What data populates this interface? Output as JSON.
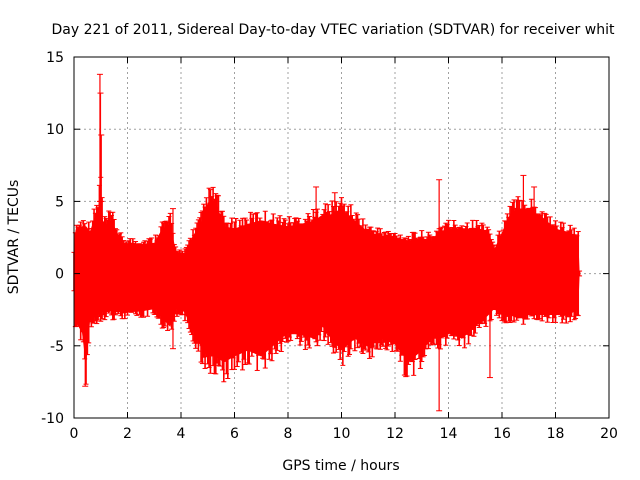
{
  "chart_data": {
    "type": "errorbar",
    "title": "Day 221 of 2011, Sidereal Day-to-day VTEC variation (SDTVAR) for receiver whit",
    "xlabel": "GPS time / hours",
    "ylabel": "SDTVAR / TECUs",
    "xlim": [
      0,
      20
    ],
    "ylim": [
      -10,
      15
    ],
    "x_ticks": [
      0,
      2,
      4,
      6,
      8,
      10,
      12,
      14,
      16,
      18,
      20
    ],
    "y_ticks": [
      -10,
      -5,
      0,
      5,
      10,
      15
    ],
    "x_tick_labels": [
      "0",
      "2",
      "4",
      "6",
      "8",
      "10",
      "12",
      "14",
      "16",
      "18",
      "20"
    ],
    "y_tick_labels": [
      "-10",
      "-5",
      "0",
      "5",
      "10",
      "15"
    ],
    "grid": true,
    "series_color": "#ff0000",
    "series": [
      {
        "name": "SDTVAR",
        "envelope": [
          {
            "x": 0.0,
            "upper": 1.5,
            "lower": -1.5
          },
          {
            "x": 0.05,
            "upper": 3.7,
            "lower": -4.0
          },
          {
            "x": 0.3,
            "upper": 4.0,
            "lower": -5.0
          },
          {
            "x": 0.45,
            "upper": 4.0,
            "lower": -7.8
          },
          {
            "x": 0.6,
            "upper": 3.6,
            "lower": -4.0
          },
          {
            "x": 0.9,
            "upper": 5.5,
            "lower": -3.5
          },
          {
            "x": 1.0,
            "upper": 7.5,
            "lower": -3.3
          },
          {
            "x": 1.1,
            "upper": 4.0,
            "lower": -3.2
          },
          {
            "x": 1.4,
            "upper": 4.5,
            "lower": -3.2
          },
          {
            "x": 1.8,
            "upper": 2.6,
            "lower": -3.3
          },
          {
            "x": 2.5,
            "upper": 2.5,
            "lower": -3.2
          },
          {
            "x": 3.0,
            "upper": 2.6,
            "lower": -3.0
          },
          {
            "x": 3.3,
            "upper": 3.8,
            "lower": -3.8
          },
          {
            "x": 3.6,
            "upper": 4.2,
            "lower": -4.5
          },
          {
            "x": 3.8,
            "upper": 2.0,
            "lower": -3.0
          },
          {
            "x": 4.1,
            "upper": 1.5,
            "lower": -3.2
          },
          {
            "x": 4.4,
            "upper": 3.0,
            "lower": -4.5
          },
          {
            "x": 4.8,
            "upper": 4.5,
            "lower": -6.5
          },
          {
            "x": 5.0,
            "upper": 6.0,
            "lower": -7.0
          },
          {
            "x": 5.3,
            "upper": 6.2,
            "lower": -7.0
          },
          {
            "x": 5.6,
            "upper": 4.0,
            "lower": -7.5
          },
          {
            "x": 6.0,
            "upper": 3.8,
            "lower": -7.0
          },
          {
            "x": 6.5,
            "upper": 4.2,
            "lower": -6.5
          },
          {
            "x": 7.0,
            "upper": 4.5,
            "lower": -7.0
          },
          {
            "x": 7.5,
            "upper": 4.2,
            "lower": -6.0
          },
          {
            "x": 8.0,
            "upper": 4.0,
            "lower": -5.0
          },
          {
            "x": 8.5,
            "upper": 4.2,
            "lower": -5.2
          },
          {
            "x": 9.0,
            "upper": 4.5,
            "lower": -5.5
          },
          {
            "x": 9.3,
            "upper": 5.0,
            "lower": -4.5
          },
          {
            "x": 9.6,
            "upper": 5.0,
            "lower": -5.5
          },
          {
            "x": 10.0,
            "upper": 5.5,
            "lower": -6.5
          },
          {
            "x": 10.5,
            "upper": 4.5,
            "lower": -5.5
          },
          {
            "x": 11.0,
            "upper": 3.5,
            "lower": -6.2
          },
          {
            "x": 11.5,
            "upper": 3.2,
            "lower": -5.5
          },
          {
            "x": 12.0,
            "upper": 3.0,
            "lower": -6.0
          },
          {
            "x": 12.5,
            "upper": 2.8,
            "lower": -7.5
          },
          {
            "x": 13.0,
            "upper": 3.0,
            "lower": -6.5
          },
          {
            "x": 13.4,
            "upper": 2.8,
            "lower": -5.5
          },
          {
            "x": 13.6,
            "upper": 3.5,
            "lower": -5.5
          },
          {
            "x": 14.0,
            "upper": 3.8,
            "lower": -5.0
          },
          {
            "x": 14.5,
            "upper": 3.8,
            "lower": -5.5
          },
          {
            "x": 15.0,
            "upper": 3.8,
            "lower": -4.5
          },
          {
            "x": 15.5,
            "upper": 3.6,
            "lower": -3.5
          },
          {
            "x": 15.7,
            "upper": 2.0,
            "lower": -3.0
          },
          {
            "x": 16.0,
            "upper": 3.5,
            "lower": -3.5
          },
          {
            "x": 16.3,
            "upper": 5.0,
            "lower": -3.5
          },
          {
            "x": 16.6,
            "upper": 5.5,
            "lower": -3.8
          },
          {
            "x": 17.0,
            "upper": 5.5,
            "lower": -3.5
          },
          {
            "x": 17.5,
            "upper": 4.8,
            "lower": -3.5
          },
          {
            "x": 18.0,
            "upper": 3.8,
            "lower": -3.5
          },
          {
            "x": 18.5,
            "upper": 3.5,
            "lower": -3.5
          },
          {
            "x": 18.85,
            "upper": 3.0,
            "lower": -3.0
          },
          {
            "x": 18.9,
            "upper": 0.2,
            "lower": -0.2
          }
        ],
        "spikes": [
          {
            "x": 0.97,
            "upper": 13.8,
            "lower": 5.0
          },
          {
            "x": 0.99,
            "upper": 12.5,
            "lower": 5.0
          },
          {
            "x": 1.02,
            "upper": 9.6,
            "lower": 5.0
          },
          {
            "x": 0.42,
            "upper": 0.0,
            "lower": -7.8
          },
          {
            "x": 3.7,
            "upper": 4.5,
            "lower": -5.2
          },
          {
            "x": 9.05,
            "upper": 6.0,
            "lower": 0.0
          },
          {
            "x": 9.75,
            "upper": 5.6,
            "lower": 0.0
          },
          {
            "x": 13.65,
            "upper": 6.5,
            "lower": -9.5
          },
          {
            "x": 15.55,
            "upper": 0.0,
            "lower": -7.2
          },
          {
            "x": 16.8,
            "upper": 6.8,
            "lower": 0.0
          },
          {
            "x": 17.2,
            "upper": 6.0,
            "lower": 0.0
          }
        ]
      }
    ]
  }
}
